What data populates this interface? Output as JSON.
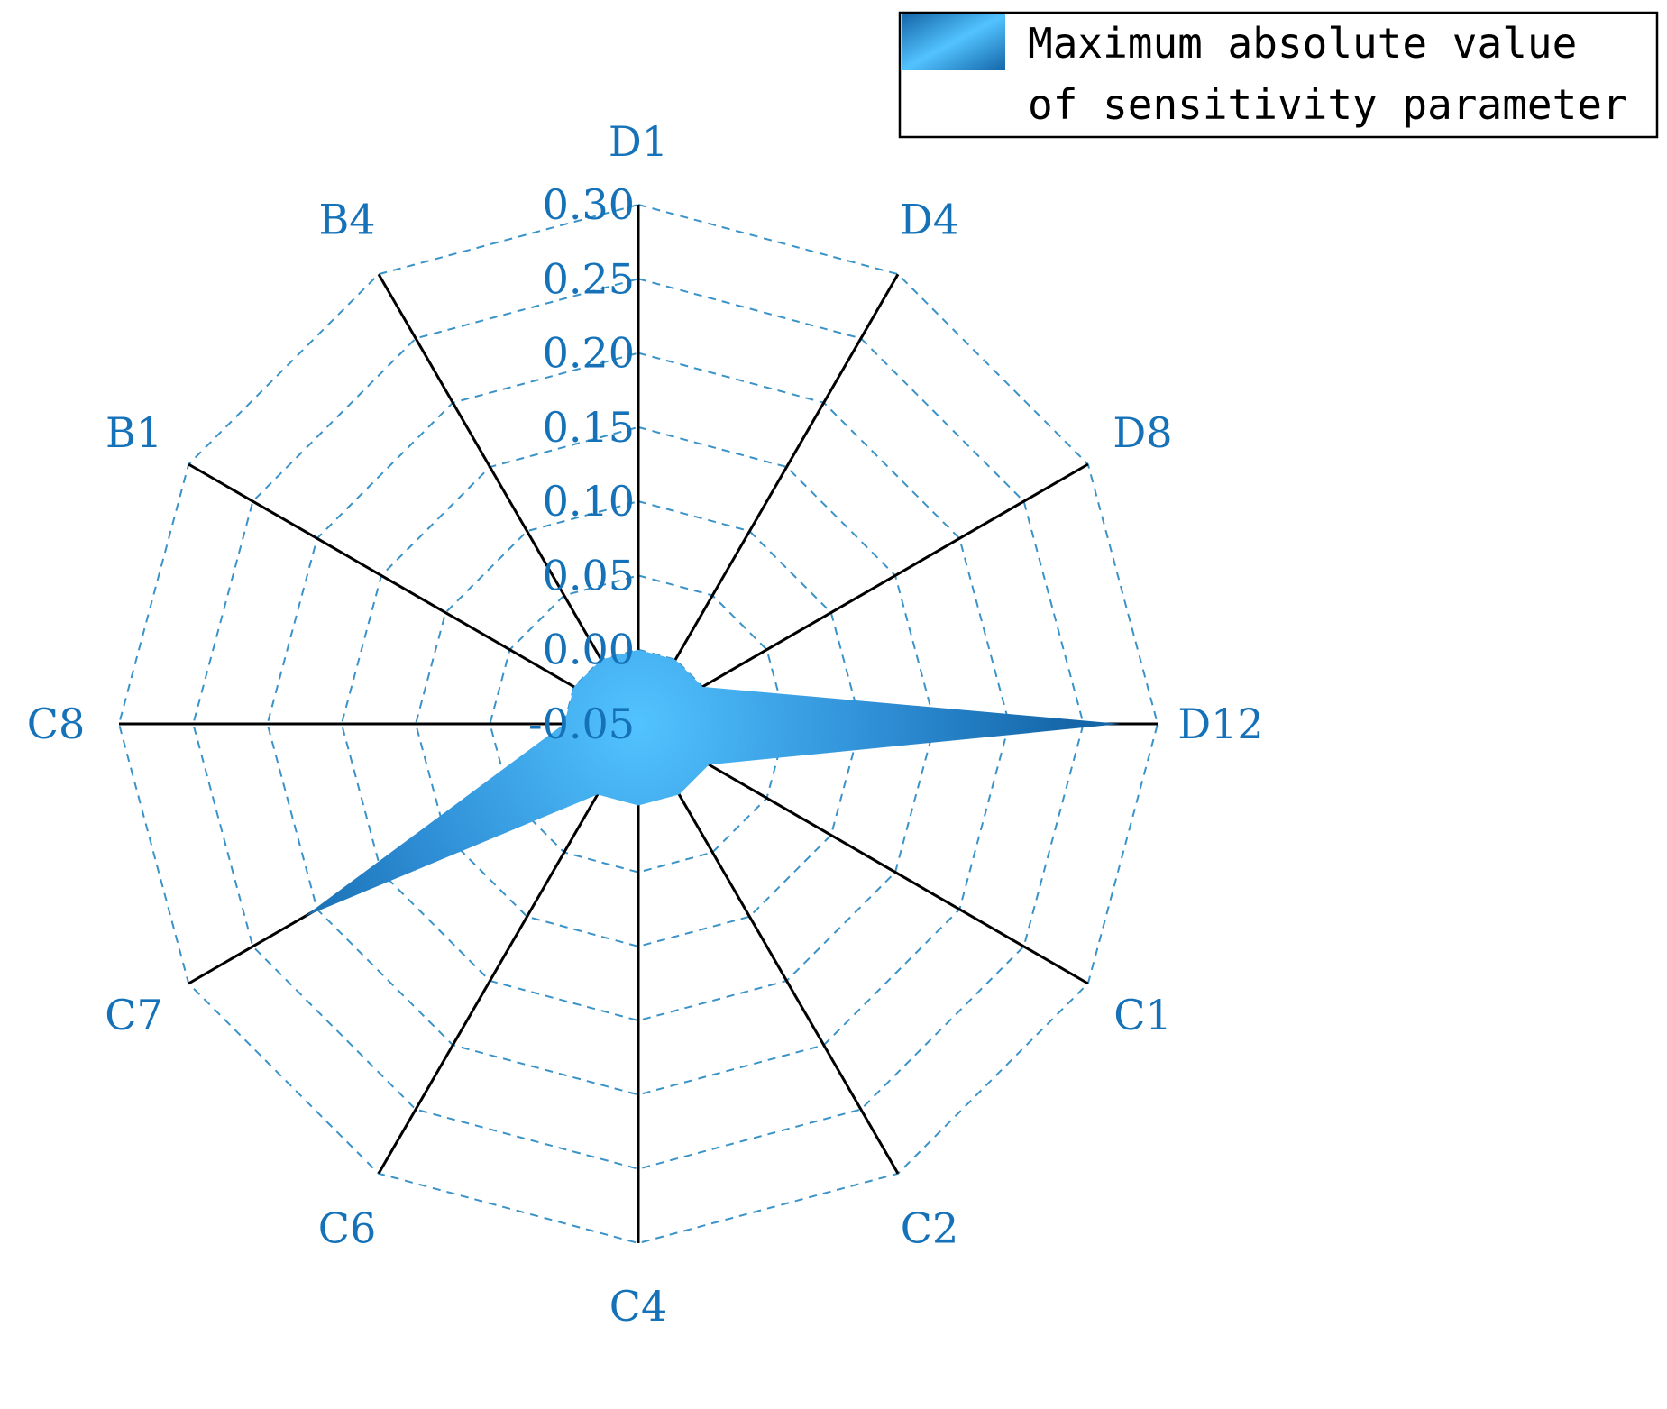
{
  "colors": {
    "accent_dark": "#1466a8",
    "accent_light": "#52c3ff",
    "label": "#1572b8",
    "grid": "#3a93c8",
    "axis": "#000000",
    "legend_border": "#000000",
    "legend_text": "#000000"
  },
  "legend": {
    "line1": "Maximum absolute value",
    "line2": "of sensitivity parameter",
    "placement": "top-right"
  },
  "chart_data": {
    "type": "radar",
    "title": "",
    "categories": [
      "D1",
      "D4",
      "D8",
      "D12",
      "C1",
      "C2",
      "C4",
      "C6",
      "C7",
      "C8",
      "B1",
      "B4"
    ],
    "axis_ticks": [
      "0.30",
      "0.25",
      "0.20",
      "0.15",
      "0.10",
      "0.05",
      "0.00",
      "-0.05"
    ],
    "rlim": [
      -0.05,
      0.3
    ],
    "grid": true,
    "grid_levels": [
      -0.05,
      0.0,
      0.05,
      0.1,
      0.15,
      0.2,
      0.25,
      0.3
    ],
    "series": [
      {
        "name": "Maximum absolute value of sensitivity parameter",
        "values": [
          0.0,
          0.0,
          0.0,
          0.275,
          0.005,
          0.005,
          0.005,
          0.005,
          0.21,
          0.0,
          0.0,
          0.0
        ]
      }
    ]
  }
}
